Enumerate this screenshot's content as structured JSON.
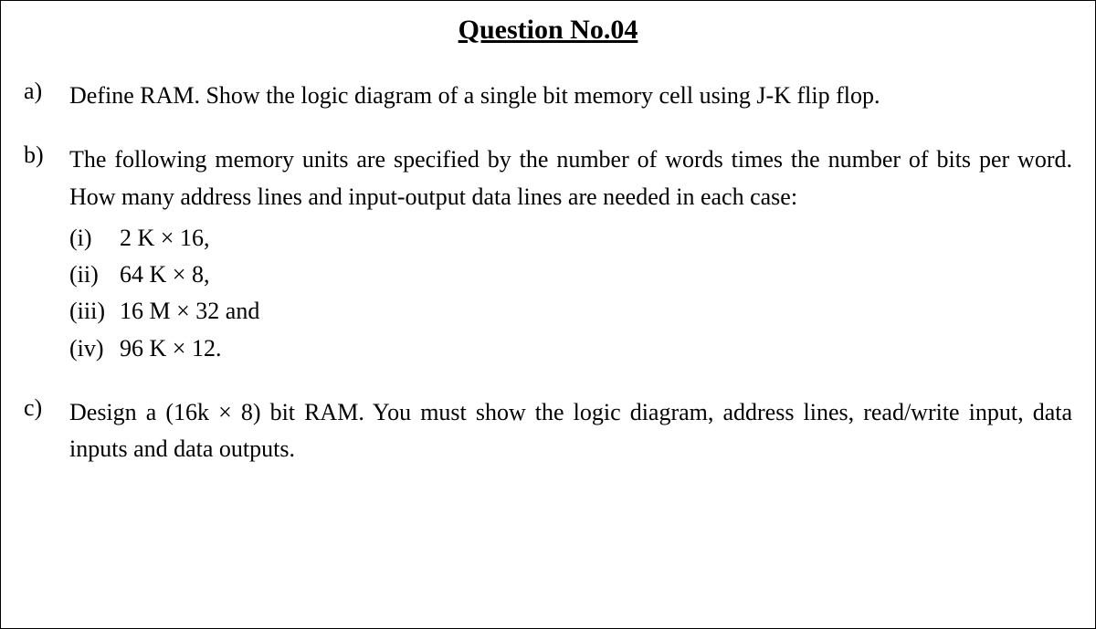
{
  "document": {
    "title": "Question No.04",
    "parts": {
      "a": {
        "label": "a)",
        "text": "Define RAM. Show the logic diagram of a single bit memory cell using J-K flip flop."
      },
      "b": {
        "label": "b)",
        "intro": "The following memory units are specified by the number of words times the number of bits per word. How many address lines and input-output data lines are needed in each case:",
        "items": [
          {
            "label": "(i)",
            "text": "2 K × 16,"
          },
          {
            "label": "(ii)",
            "text": "64 K × 8,"
          },
          {
            "label": "(iii)",
            "text": "16 M × 32 and"
          },
          {
            "label": "(iv)",
            "text": "96 K × 12."
          }
        ]
      },
      "c": {
        "label": "c)",
        "text": "Design a (16k × 8) bit RAM. You must show the logic diagram, address lines, read/write input, data inputs and data outputs."
      }
    },
    "styling": {
      "font_family": "Times New Roman",
      "title_fontsize": 30,
      "body_fontsize": 26,
      "text_color": "#000000",
      "background_color": "#ffffff",
      "border_color": "#000000",
      "line_height": 1.55
    }
  }
}
